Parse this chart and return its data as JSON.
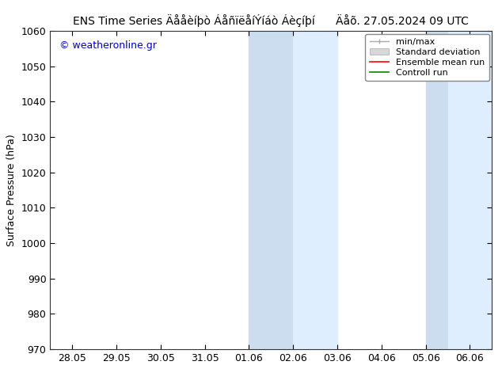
{
  "title_left": "ENS Time Series Äååèíþò ÁåñïëåíÝíáò Áèçíþí",
  "title_right": "Äåõ. 27.05.2024 09 UTC",
  "ylabel": "Surface Pressure (hPa)",
  "ylim": [
    970,
    1060
  ],
  "yticks": [
    970,
    980,
    990,
    1000,
    1010,
    1020,
    1030,
    1040,
    1050,
    1060
  ],
  "xtick_labels": [
    "28.05",
    "29.05",
    "30.05",
    "31.05",
    "01.06",
    "02.06",
    "03.06",
    "04.06",
    "05.06",
    "06.06"
  ],
  "xtick_positions": [
    0,
    1,
    2,
    3,
    4,
    5,
    6,
    7,
    8,
    9
  ],
  "xlim": [
    -0.5,
    9.5
  ],
  "shade_band1_x0": 4.5,
  "shade_band1_x1": 5.0,
  "shade_band1b_x0": 5.0,
  "shade_band1b_x1": 6.0,
  "shade_band2_x0": 8.0,
  "shade_band2_x1": 8.5,
  "shade_band2b_x0": 8.5,
  "shade_band2b_x1": 9.5,
  "shade_color_dark": "#ccddef",
  "shade_color_light": "#deeeff",
  "bg_color": "#ffffff",
  "watermark": "© weatheronline.gr",
  "watermark_color": "#0000cc",
  "legend_labels": [
    "min/max",
    "Standard deviation",
    "Ensemble mean run",
    "Controll run"
  ],
  "legend_line_color": "#aaaaaa",
  "legend_std_color": "#cccccc",
  "legend_ens_color": "#ff0000",
  "legend_ctrl_color": "#008800",
  "title_fontsize": 10,
  "axis_label_fontsize": 9,
  "tick_fontsize": 9,
  "legend_fontsize": 8
}
